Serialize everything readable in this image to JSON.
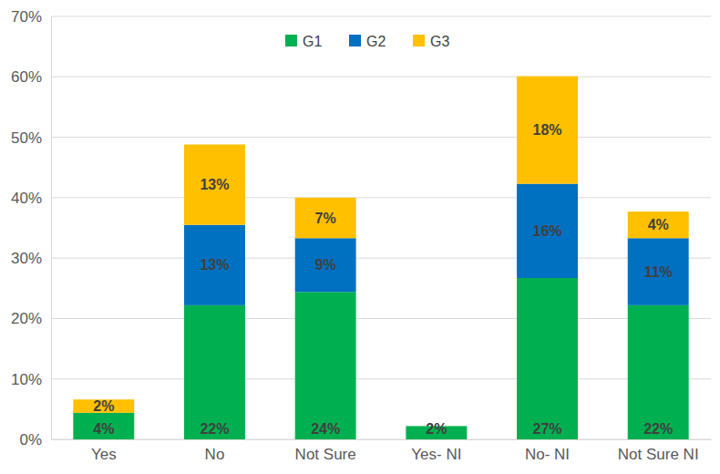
{
  "chart_data": {
    "type": "bar",
    "stacked": true,
    "data_labels": true,
    "grid": true,
    "legend": "top",
    "categories": [
      "Yes",
      "No",
      "Not Sure",
      "Yes- NI",
      "No- NI",
      "Not Sure NI"
    ],
    "ylim": [
      0,
      70
    ],
    "yticks": [
      {
        "value": 0,
        "label": "0%"
      },
      {
        "value": 10,
        "label": "10%"
      },
      {
        "value": 20,
        "label": "20%"
      },
      {
        "value": 30,
        "label": "30%"
      },
      {
        "value": 40,
        "label": "40%"
      },
      {
        "value": 50,
        "label": "50%"
      },
      {
        "value": 60,
        "label": "60%"
      },
      {
        "value": 70,
        "label": "70%"
      }
    ],
    "series": [
      {
        "name": "G1",
        "color": "#00b050",
        "values": [
          4.4,
          22.2,
          24.4,
          2.2,
          26.7,
          22.2
        ],
        "value_labels": [
          "4%",
          "22%",
          "24%",
          "2%",
          "27%",
          "22%"
        ]
      },
      {
        "name": "G2",
        "color": "#0070c0",
        "values": [
          0,
          13.3,
          8.9,
          0,
          15.6,
          11.1
        ],
        "value_labels": [
          null,
          "13%",
          "9%",
          null,
          "16%",
          "11%"
        ]
      },
      {
        "name": "G3",
        "color": "#ffc000",
        "values": [
          2.2,
          13.3,
          6.7,
          0,
          17.8,
          4.4
        ],
        "value_labels": [
          "2%",
          "13%",
          "7%",
          null,
          "18%",
          "4%"
        ]
      }
    ]
  }
}
